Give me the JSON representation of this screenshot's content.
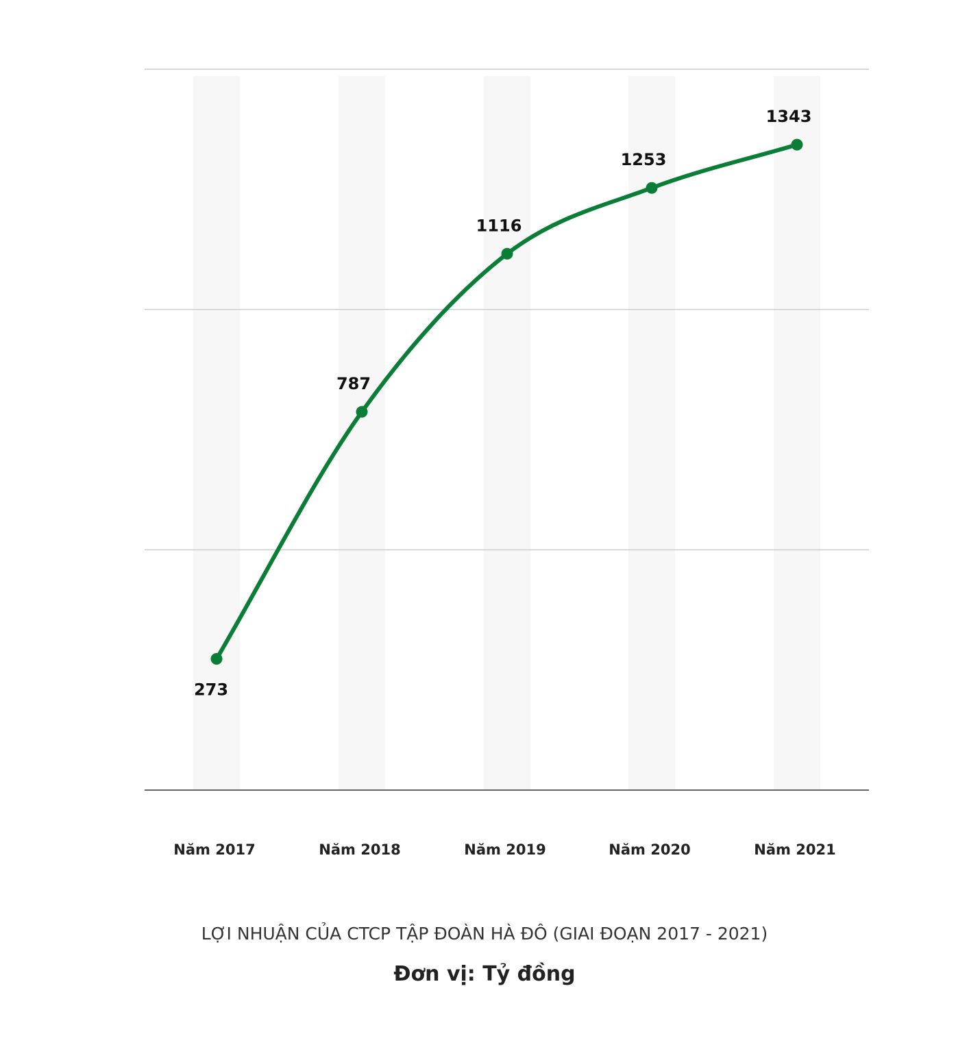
{
  "chart_data": {
    "type": "line",
    "categories": [
      "Năm 2017",
      "Năm 2018",
      "Năm 2019",
      "Năm 2020",
      "Năm 2021"
    ],
    "values": [
      273,
      787,
      1116,
      1253,
      1343
    ],
    "data_labels": [
      "273",
      "787",
      "1116",
      "1253",
      "1343"
    ],
    "title": "LỢI NHUẬN CỦA CTCP TẬP ĐOÀN HÀ ĐÔ (GIAI ĐOẠN 2017 - 2021)",
    "unit": "Đơn vị: Tỷ đồng",
    "xlabel": "",
    "ylabel": "",
    "ylim": [
      0,
      1500
    ],
    "grid": true,
    "line_color": "#0a7d36",
    "band_color": "#f7f7f7",
    "grid_color": "#cccccc"
  }
}
